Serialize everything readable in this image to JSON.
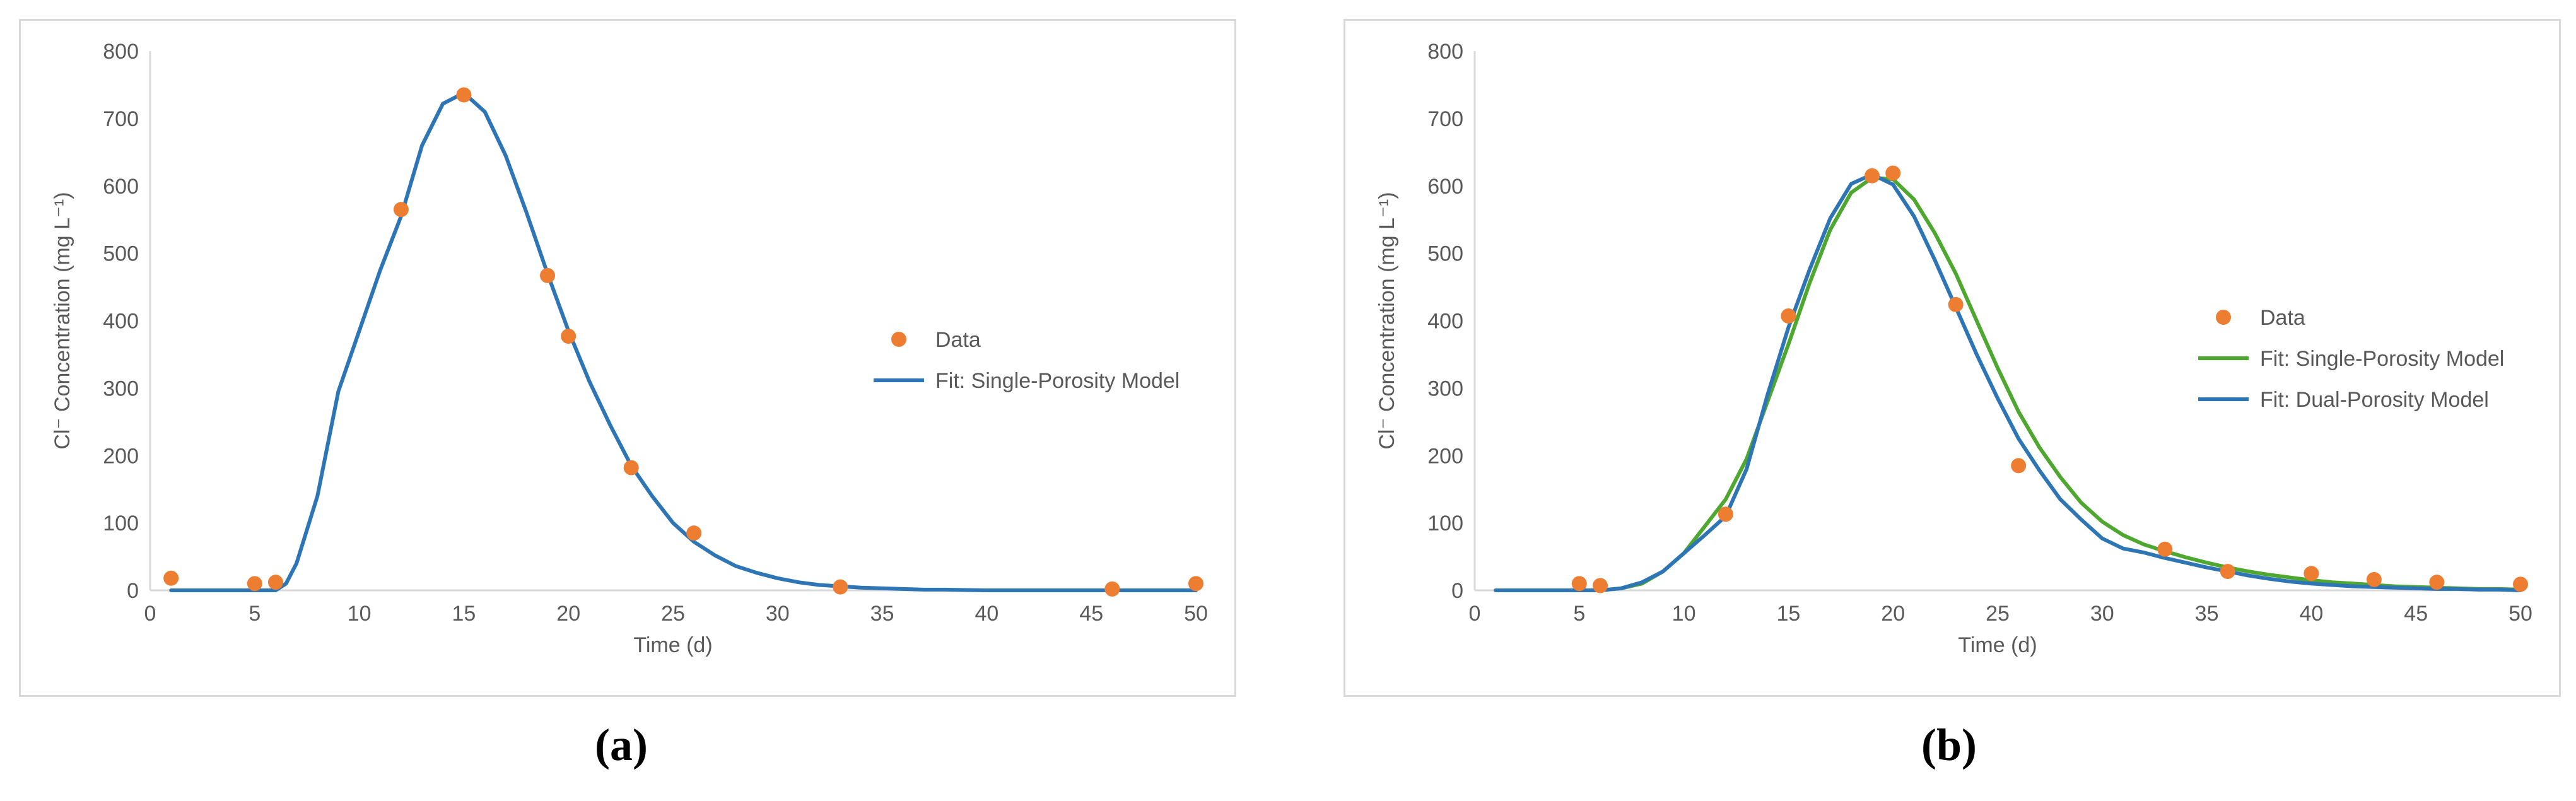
{
  "chart_data": [
    {
      "type": "scatter+line",
      "panel_label": "a",
      "xlabel": "Time (d)",
      "ylabel": "Cl⁻ Concentration (mg L⁻¹)",
      "xlim": [
        0,
        50
      ],
      "ylim": [
        0,
        800
      ],
      "xticks": [
        0,
        5,
        10,
        15,
        20,
        25,
        30,
        35,
        40,
        45,
        50
      ],
      "yticks": [
        0,
        100,
        200,
        300,
        400,
        500,
        600,
        700,
        800
      ],
      "grid": false,
      "legend_position": "right",
      "series": [
        {
          "name": "Data",
          "kind": "scatter",
          "color": "#ED7D31",
          "x": [
            1,
            5,
            6,
            12,
            15,
            19,
            20,
            23,
            26,
            33,
            46,
            50
          ],
          "y": [
            18,
            10,
            12,
            565,
            735,
            467,
            377,
            182,
            85,
            5,
            2,
            10
          ]
        },
        {
          "name": "Fit: Single-Porosity Model",
          "kind": "line",
          "color": "#2E75B6",
          "x": [
            1,
            2,
            3,
            4,
            5,
            6,
            6.5,
            7,
            8,
            9,
            10,
            11,
            12,
            13,
            14,
            15,
            16,
            17,
            18,
            19,
            20,
            21,
            22,
            23,
            24,
            25,
            26,
            27,
            28,
            29,
            30,
            31,
            32,
            33,
            34,
            35,
            36,
            37,
            38,
            40,
            45,
            50
          ],
          "y": [
            0,
            0,
            0,
            0,
            0,
            0,
            10,
            40,
            140,
            295,
            385,
            475,
            555,
            660,
            722,
            738,
            710,
            645,
            560,
            470,
            385,
            310,
            245,
            185,
            140,
            100,
            72,
            52,
            36,
            26,
            18,
            12,
            8,
            6,
            4,
            3,
            2,
            1,
            1,
            0,
            0,
            0
          ]
        }
      ]
    },
    {
      "type": "scatter+line",
      "panel_label": "b",
      "xlabel": "Time (d)",
      "ylabel": "Cl⁻ Concentration (mg L⁻¹)",
      "xlim": [
        0,
        50
      ],
      "ylim": [
        0,
        800
      ],
      "xticks": [
        0,
        5,
        10,
        15,
        20,
        25,
        30,
        35,
        40,
        45,
        50
      ],
      "yticks": [
        0,
        100,
        200,
        300,
        400,
        500,
        600,
        700,
        800
      ],
      "grid": false,
      "legend_position": "right",
      "series": [
        {
          "name": "Data",
          "kind": "scatter",
          "color": "#ED7D31",
          "x": [
            5,
            6,
            12,
            15,
            19,
            20,
            23,
            26,
            33,
            36,
            40,
            43,
            46,
            50
          ],
          "y": [
            10,
            7,
            113,
            407,
            615,
            619,
            424,
            185,
            61,
            28,
            25,
            16,
            12,
            9
          ]
        },
        {
          "name": "Fit: Single-Porosity Model",
          "kind": "line",
          "color": "#4EA72E",
          "x": [
            1,
            2,
            3,
            4,
            5,
            6,
            7,
            8,
            9,
            10,
            11,
            12,
            13,
            14,
            15,
            16,
            17,
            18,
            19,
            20,
            21,
            22,
            23,
            24,
            25,
            26,
            27,
            28,
            29,
            30,
            31,
            32,
            33,
            34,
            35,
            36,
            37,
            38,
            39,
            40,
            41,
            42,
            43,
            44,
            45,
            46,
            47,
            48,
            49,
            50
          ],
          "y": [
            0,
            0,
            0,
            0,
            0,
            0,
            3,
            10,
            28,
            55,
            95,
            135,
            195,
            280,
            365,
            455,
            535,
            590,
            612,
            610,
            580,
            530,
            470,
            400,
            330,
            265,
            212,
            168,
            130,
            102,
            82,
            68,
            58,
            49,
            41,
            34,
            28,
            23,
            19,
            15,
            12,
            10,
            8,
            6,
            5,
            4,
            3,
            2,
            2,
            1
          ]
        },
        {
          "name": "Fit: Dual-Porosity Model",
          "kind": "line",
          "color": "#2E75B6",
          "x": [
            1,
            2,
            3,
            4,
            5,
            6,
            7,
            8,
            9,
            10,
            11,
            12,
            13,
            14,
            15,
            16,
            17,
            18,
            19,
            20,
            21,
            22,
            23,
            24,
            25,
            26,
            27,
            28,
            29,
            30,
            31,
            32,
            33,
            34,
            35,
            36,
            37,
            38,
            39,
            40,
            41,
            42,
            43,
            44,
            45,
            46,
            47,
            48,
            49,
            50
          ],
          "y": [
            0,
            0,
            0,
            0,
            0,
            0,
            3,
            12,
            28,
            55,
            82,
            110,
            180,
            290,
            390,
            475,
            552,
            603,
            617,
            602,
            555,
            490,
            420,
            350,
            285,
            225,
            178,
            135,
            105,
            77,
            62,
            56,
            48,
            41,
            34,
            28,
            22,
            17,
            13,
            10,
            8,
            6,
            5,
            4,
            3,
            2,
            2,
            1,
            1,
            0
          ]
        }
      ]
    }
  ],
  "captions": {
    "a": "(a)",
    "b": "(b)"
  }
}
